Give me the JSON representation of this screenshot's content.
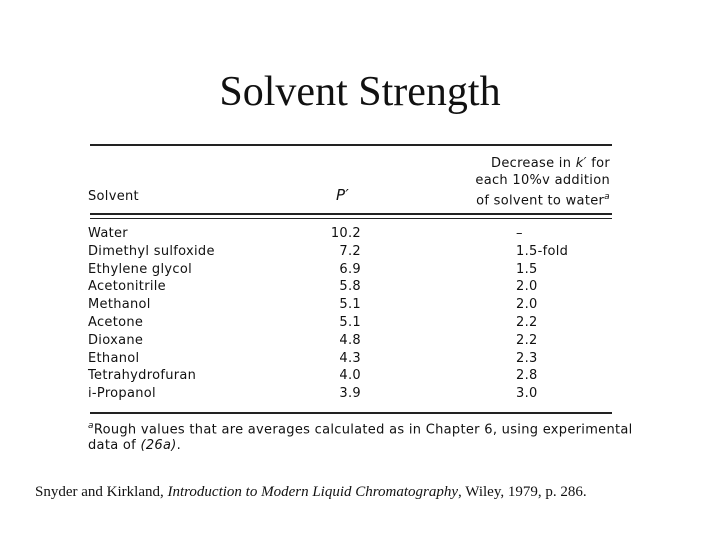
{
  "title": "Solvent Strength",
  "table": {
    "header": {
      "solvent": "Solvent",
      "p": "P′",
      "decrease": [
        [
          "Decrease in ",
          "k′",
          " for"
        ],
        [
          "each 10%v addition"
        ],
        [
          "of solvent to water"
        ]
      ],
      "decrease_note": "a"
    },
    "rows": [
      [
        "Water",
        "10.2",
        "–"
      ],
      [
        "Dimethyl sulfoxide",
        "7.2",
        "1.5-fold"
      ],
      [
        "Ethylene glycol",
        "6.9",
        "1.5"
      ],
      [
        "Acetonitrile",
        "5.8",
        "2.0"
      ],
      [
        "Methanol",
        "5.1",
        "2.0"
      ],
      [
        "Acetone",
        "5.1",
        "2.2"
      ],
      [
        "Dioxane",
        "4.8",
        "2.2"
      ],
      [
        "Ethanol",
        "4.3",
        "2.3"
      ],
      [
        "Tetrahydrofuran",
        "4.0",
        "2.8"
      ],
      [
        "i-Propanol",
        "3.9",
        "3.0"
      ]
    ],
    "footnote": {
      "marker": "a",
      "line1": "Rough values that are averages calculated as in Chapter 6, using experimental",
      "line2": [
        "data of ",
        "(26a)",
        "."
      ]
    }
  },
  "citation": [
    "Snyder and Kirkland, ",
    "Introduction to Modern Liquid Chromatography",
    ", Wiley, 1979, p. 286."
  ]
}
